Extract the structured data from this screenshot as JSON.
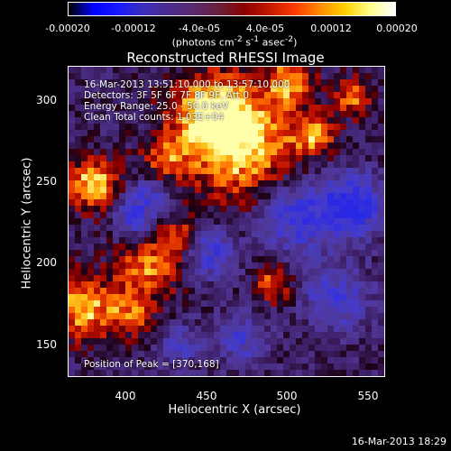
{
  "colorbar": {
    "ticks": [
      "-0.00020",
      "-0.00012",
      "-4.0e-05",
      "4.0e-05",
      "0.00012",
      "0.00020"
    ],
    "unit_prefix": "(photons cm",
    "unit_exp1": "-2",
    "unit_mid1": " s",
    "unit_exp2": "-1",
    "unit_mid2": " asec",
    "unit_exp3": "-2",
    "unit_suffix": ")"
  },
  "title": "Reconstructed RHESSI Image",
  "info": {
    "line1": "16-Mar-2013 13:51:10.000 to 13:57:10.000",
    "line2": "Detectors: 3F 5F 6F 7F 8F 9F, Att 0",
    "line3": "Energy Range: 25.0 - 50.0 keV",
    "line4": "Clean     Total counts: 1.03E+04",
    "peak": "Position of Peak = [370,168]"
  },
  "axes": {
    "xlabel": "Heliocentric X (arcsec)",
    "ylabel": "Heliocentric Y (arcsec)",
    "xticks": [
      "400",
      "450",
      "500",
      "550"
    ],
    "yticks": [
      "300",
      "250",
      "200",
      "150"
    ]
  },
  "timestamp": "16-Mar-2013 18:29",
  "colors": {
    "palette": [
      "#000000",
      "#0000ff",
      "#1a1aff",
      "#3c2fb8",
      "#4b2c8f",
      "#5a2a6f",
      "#6a1f3a",
      "#8b0000",
      "#c41800",
      "#ff3a00",
      "#ff8a00",
      "#ffd000",
      "#ffff88",
      "#ffffff"
    ]
  }
}
